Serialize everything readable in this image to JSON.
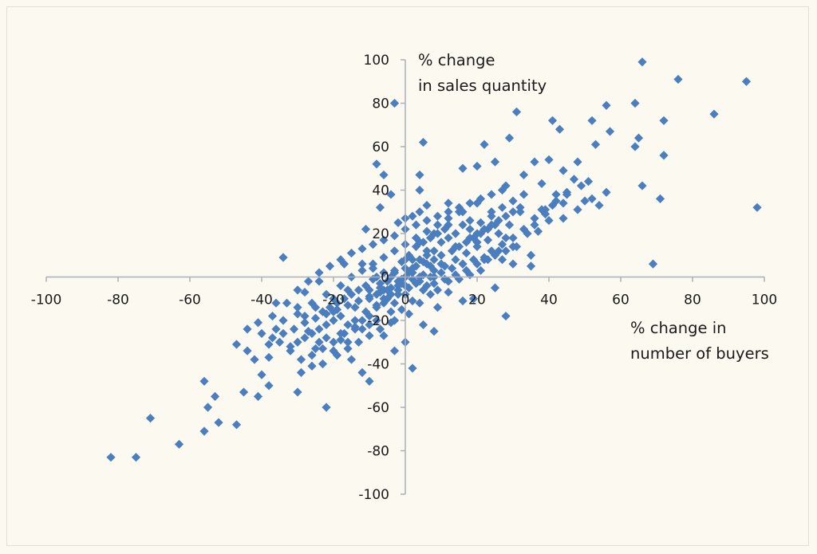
{
  "chart_data": {
    "type": "scatter",
    "title": "",
    "xlabel": [
      "% change in",
      "number of buyers"
    ],
    "ylabel": [
      "% change",
      "in sales quantity"
    ],
    "xlim": [
      -100,
      100
    ],
    "ylim": [
      -100,
      100
    ],
    "x_ticks": [
      -100,
      -80,
      -60,
      -40,
      -20,
      0,
      20,
      40,
      60,
      80,
      100
    ],
    "y_ticks": [
      100,
      80,
      60,
      40,
      20,
      0,
      -20,
      -40,
      -60,
      -80,
      -100
    ],
    "grid": false,
    "legend": "none",
    "marker": "diamond",
    "marker_color": "#4a7ebf",
    "axis_color": "#a9b0b8",
    "background_color": "#fcf9f1",
    "points": [
      [
        66,
        99
      ],
      [
        95,
        90
      ],
      [
        76,
        91
      ],
      [
        72,
        72
      ],
      [
        86,
        75
      ],
      [
        64,
        80
      ],
      [
        56,
        79
      ],
      [
        31,
        76
      ],
      [
        41,
        72
      ],
      [
        -3,
        80
      ],
      [
        65,
        64
      ],
      [
        72,
        56
      ],
      [
        98,
        32
      ],
      [
        69,
        6
      ],
      [
        71,
        36
      ],
      [
        66,
        42
      ],
      [
        64,
        60
      ],
      [
        53,
        61
      ],
      [
        57,
        67
      ],
      [
        52,
        72
      ],
      [
        43,
        68
      ],
      [
        -82,
        -83
      ],
      [
        -75,
        -83
      ],
      [
        -63,
        -77
      ],
      [
        -56,
        -71
      ],
      [
        -71,
        -65
      ],
      [
        -56,
        -48
      ],
      [
        -55,
        -60
      ],
      [
        -53,
        -55
      ],
      [
        -52,
        -67
      ],
      [
        -47,
        -68
      ],
      [
        -22,
        -60
      ],
      [
        -45,
        -53
      ],
      [
        -47,
        -31
      ],
      [
        -44,
        -24
      ],
      [
        -34,
        9
      ],
      [
        -17,
        6
      ],
      [
        -11,
        22
      ],
      [
        -7,
        32
      ],
      [
        -6,
        47
      ],
      [
        -8,
        52
      ],
      [
        -4,
        38
      ],
      [
        4,
        47
      ],
      [
        5,
        62
      ],
      [
        4,
        40
      ],
      [
        12,
        34
      ],
      [
        16,
        50
      ],
      [
        22,
        61
      ],
      [
        29,
        64
      ],
      [
        25,
        53
      ],
      [
        20,
        51
      ],
      [
        28,
        42
      ],
      [
        33,
        47
      ],
      [
        36,
        53
      ],
      [
        40,
        54
      ],
      [
        44,
        49
      ],
      [
        48,
        53
      ],
      [
        49,
        42
      ],
      [
        51,
        44
      ],
      [
        52,
        36
      ],
      [
        54,
        33
      ],
      [
        56,
        39
      ],
      [
        50,
        35
      ],
      [
        45,
        38
      ],
      [
        38,
        43
      ],
      [
        39,
        29
      ],
      [
        37,
        21
      ],
      [
        35,
        10
      ],
      [
        35,
        5
      ],
      [
        30,
        6
      ],
      [
        27,
        8
      ],
      [
        28,
        -18
      ],
      [
        25,
        -5
      ],
      [
        19,
        -10
      ],
      [
        16,
        -11
      ],
      [
        5,
        -22
      ],
      [
        8,
        -25
      ],
      [
        2,
        -42
      ],
      [
        0,
        -30
      ],
      [
        -3,
        -34
      ],
      [
        -10,
        -48
      ],
      [
        -12,
        -44
      ],
      [
        -15,
        -38
      ],
      [
        -25,
        -33
      ],
      [
        -29,
        -44
      ],
      [
        -30,
        -53
      ],
      [
        -35,
        -30
      ],
      [
        -38,
        -37
      ],
      [
        -40,
        -45
      ],
      [
        -38,
        -50
      ],
      [
        -41,
        -55
      ],
      [
        -41,
        -21
      ],
      [
        -37,
        -18
      ],
      [
        -33,
        -12
      ],
      [
        -28,
        -7
      ],
      [
        -24,
        -2
      ],
      [
        -30,
        -17
      ],
      [
        -27,
        -25
      ],
      [
        -22,
        -28
      ],
      [
        -18,
        -29
      ],
      [
        -14,
        -23
      ],
      [
        -10,
        -22
      ],
      [
        -6,
        -27
      ],
      [
        -3,
        -20
      ],
      [
        1,
        -17
      ],
      [
        4,
        -12
      ],
      [
        7,
        -8
      ],
      [
        9,
        -14
      ],
      [
        12,
        -7
      ],
      [
        15,
        -1
      ],
      [
        18,
        1
      ],
      [
        21,
        3
      ],
      [
        24,
        12
      ],
      [
        27,
        15
      ],
      [
        30,
        18
      ],
      [
        33,
        22
      ],
      [
        36,
        27
      ],
      [
        39,
        31
      ],
      [
        42,
        35
      ],
      [
        45,
        39
      ],
      [
        47,
        45
      ],
      [
        48,
        31
      ],
      [
        44,
        27
      ],
      [
        41,
        33
      ],
      [
        32,
        30
      ],
      [
        29,
        24
      ],
      [
        26,
        20
      ],
      [
        23,
        17
      ],
      [
        20,
        14
      ],
      [
        17,
        11
      ],
      [
        14,
        8
      ],
      [
        11,
        5
      ],
      [
        8,
        3
      ],
      [
        5,
        1
      ],
      [
        2,
        -1
      ],
      [
        -1,
        -3
      ],
      [
        -4,
        -5
      ],
      [
        -7,
        -7
      ],
      [
        -10,
        -9
      ],
      [
        -13,
        -11
      ],
      [
        -16,
        -13
      ],
      [
        -19,
        -15
      ],
      [
        -22,
        -17
      ],
      [
        -25,
        -19
      ],
      [
        -28,
        -21
      ],
      [
        -31,
        -24
      ],
      [
        -34,
        -26
      ],
      [
        -37,
        -28
      ],
      [
        -20,
        -10
      ],
      [
        -18,
        -4
      ],
      [
        -15,
        0
      ],
      [
        -12,
        3
      ],
      [
        -9,
        6
      ],
      [
        -6,
        9
      ],
      [
        -3,
        12
      ],
      [
        0,
        15
      ],
      [
        3,
        18
      ],
      [
        6,
        21
      ],
      [
        9,
        24
      ],
      [
        12,
        27
      ],
      [
        15,
        30
      ],
      [
        18,
        22
      ],
      [
        21,
        25
      ],
      [
        24,
        28
      ],
      [
        27,
        32
      ],
      [
        30,
        35
      ],
      [
        33,
        38
      ],
      [
        -26,
        -36
      ],
      [
        -23,
        -33
      ],
      [
        -20,
        -30
      ],
      [
        -17,
        -26
      ],
      [
        -14,
        -20
      ],
      [
        -11,
        -16
      ],
      [
        -8,
        -13
      ],
      [
        -5,
        -10
      ],
      [
        -2,
        -8
      ],
      [
        1,
        -5
      ],
      [
        4,
        -2
      ],
      [
        7,
        0
      ],
      [
        10,
        2
      ],
      [
        13,
        4
      ],
      [
        16,
        6
      ],
      [
        19,
        8
      ],
      [
        22,
        9
      ],
      [
        25,
        10
      ],
      [
        28,
        12
      ],
      [
        31,
        14
      ],
      [
        -30,
        -6
      ],
      [
        -27,
        -2
      ],
      [
        -24,
        2
      ],
      [
        -21,
        5
      ],
      [
        -18,
        8
      ],
      [
        -15,
        11
      ],
      [
        -12,
        13
      ],
      [
        -9,
        15
      ],
      [
        -6,
        17
      ],
      [
        -3,
        19
      ],
      [
        0,
        22
      ],
      [
        3,
        24
      ],
      [
        6,
        26
      ],
      [
        9,
        28
      ],
      [
        12,
        30
      ],
      [
        15,
        32
      ],
      [
        18,
        34
      ],
      [
        21,
        36
      ],
      [
        24,
        38
      ],
      [
        27,
        40
      ],
      [
        -36,
        -12
      ],
      [
        -32,
        -34
      ],
      [
        -29,
        -38
      ],
      [
        -26,
        -41
      ],
      [
        -23,
        -40
      ],
      [
        -19,
        -36
      ],
      [
        -16,
        -33
      ],
      [
        -13,
        -30
      ],
      [
        -10,
        -27
      ],
      [
        -7,
        -24
      ],
      [
        -4,
        -21
      ],
      [
        -1,
        -15
      ],
      [
        2,
        -11
      ],
      [
        5,
        -6
      ],
      [
        8,
        -3
      ],
      [
        11,
        -1
      ],
      [
        14,
        1
      ],
      [
        17,
        3
      ],
      [
        20,
        6
      ],
      [
        23,
        8
      ],
      [
        0,
        0
      ],
      [
        2,
        4
      ],
      [
        -2,
        -4
      ],
      [
        4,
        8
      ],
      [
        -4,
        -8
      ],
      [
        6,
        10
      ],
      [
        -6,
        -12
      ],
      [
        8,
        12
      ],
      [
        -8,
        -14
      ],
      [
        10,
        16
      ],
      [
        -10,
        -18
      ],
      [
        12,
        18
      ],
      [
        -12,
        -20
      ],
      [
        14,
        20
      ],
      [
        -14,
        -24
      ],
      [
        16,
        24
      ],
      [
        -16,
        -22
      ],
      [
        1,
        10
      ],
      [
        -1,
        7
      ],
      [
        3,
        14
      ],
      [
        -3,
        2
      ],
      [
        5,
        16
      ],
      [
        -5,
        -2
      ],
      [
        7,
        18
      ],
      [
        -7,
        -3
      ],
      [
        9,
        20
      ],
      [
        -9,
        -1
      ],
      [
        11,
        22
      ],
      [
        -11,
        -4
      ],
      [
        13,
        12
      ],
      [
        -13,
        -6
      ],
      [
        15,
        14
      ],
      [
        -15,
        -8
      ],
      [
        17,
        16
      ],
      [
        -17,
        -10
      ],
      [
        19,
        18
      ],
      [
        -19,
        -12
      ],
      [
        21,
        20
      ],
      [
        -21,
        -14
      ],
      [
        23,
        22
      ],
      [
        -23,
        -16
      ],
      [
        25,
        24
      ],
      [
        -25,
        -14
      ],
      [
        2,
        28
      ],
      [
        4,
        30
      ],
      [
        6,
        33
      ],
      [
        -2,
        25
      ],
      [
        0,
        27
      ],
      [
        3,
        5
      ],
      [
        -3,
        -12
      ],
      [
        6,
        -4
      ],
      [
        -6,
        2
      ],
      [
        9,
        -6
      ],
      [
        -9,
        4
      ],
      [
        12,
        -2
      ],
      [
        -12,
        6
      ],
      [
        1,
        2
      ],
      [
        -1,
        -1
      ],
      [
        3,
        -3
      ],
      [
        -3,
        3
      ],
      [
        5,
        7
      ],
      [
        -5,
        -6
      ],
      [
        7,
        5
      ],
      [
        -7,
        -5
      ],
      [
        8,
        8
      ],
      [
        -8,
        -8
      ],
      [
        10,
        10
      ],
      [
        -10,
        -10
      ],
      [
        -20,
        -20
      ],
      [
        20,
        20
      ],
      [
        -24,
        -24
      ],
      [
        24,
        24
      ],
      [
        -28,
        -28
      ],
      [
        28,
        28
      ],
      [
        -32,
        -32
      ],
      [
        32,
        32
      ],
      [
        -18,
        -18
      ],
      [
        18,
        18
      ],
      [
        -14,
        -14
      ],
      [
        14,
        14
      ],
      [
        -6,
        -6
      ],
      [
        6,
        6
      ],
      [
        -2,
        -2
      ],
      [
        2,
        2
      ],
      [
        -4,
        0
      ],
      [
        4,
        0
      ],
      [
        0,
        4
      ],
      [
        0,
        -4
      ],
      [
        -8,
        0
      ],
      [
        8,
        0
      ],
      [
        0,
        8
      ],
      [
        0,
        -8
      ],
      [
        -16,
        -6
      ],
      [
        16,
        6
      ],
      [
        -22,
        -8
      ],
      [
        22,
        8
      ],
      [
        -26,
        -12
      ],
      [
        26,
        12
      ],
      [
        -30,
        -14
      ],
      [
        30,
        14
      ],
      [
        -16,
        -30
      ],
      [
        16,
        30
      ],
      [
        -20,
        -34
      ],
      [
        20,
        34
      ],
      [
        -24,
        -30
      ],
      [
        24,
        30
      ],
      [
        -12,
        -24
      ],
      [
        12,
        24
      ],
      [
        -8,
        -20
      ],
      [
        8,
        20
      ],
      [
        -4,
        -16
      ],
      [
        4,
        16
      ],
      [
        -18,
        -26
      ],
      [
        18,
        26
      ],
      [
        -22,
        -22
      ],
      [
        22,
        22
      ],
      [
        -26,
        -26
      ],
      [
        26,
        26
      ],
      [
        -34,
        -20
      ],
      [
        34,
        20
      ],
      [
        -36,
        -24
      ],
      [
        36,
        24
      ],
      [
        -38,
        -31
      ],
      [
        38,
        31
      ],
      [
        -40,
        -26
      ],
      [
        40,
        26
      ],
      [
        -42,
        -38
      ],
      [
        42,
        38
      ],
      [
        -44,
        -34
      ],
      [
        44,
        34
      ],
      [
        -30,
        -30
      ],
      [
        30,
        30
      ],
      [
        -28,
        -18
      ],
      [
        28,
        18
      ],
      [
        -20,
        -16
      ],
      [
        20,
        16
      ],
      [
        -10,
        -6
      ],
      [
        10,
        6
      ],
      [
        -6,
        -10
      ],
      [
        6,
        12
      ],
      [
        -2,
        -6
      ],
      [
        2,
        8
      ]
    ]
  }
}
